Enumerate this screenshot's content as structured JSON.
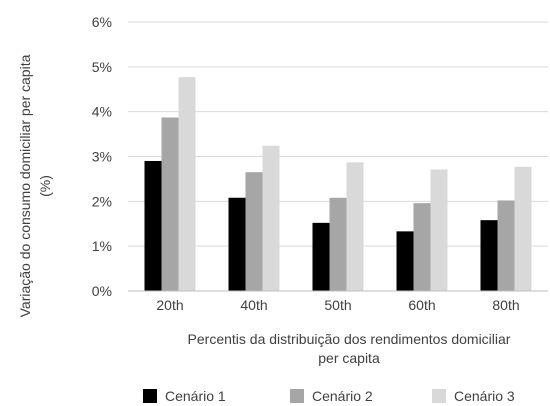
{
  "chart_data": {
    "type": "bar",
    "categories": [
      "20th",
      "40th",
      "50th",
      "60th",
      "80th"
    ],
    "series": [
      {
        "name": "Cenário 1",
        "color": "#000000",
        "values": [
          2.9,
          2.08,
          1.52,
          1.33,
          1.58
        ]
      },
      {
        "name": "Cenário 2",
        "color": "#a6a6a6",
        "values": [
          3.87,
          2.65,
          2.08,
          1.96,
          2.02
        ]
      },
      {
        "name": "Cenário 3",
        "color": "#d9d9d9",
        "values": [
          4.77,
          3.24,
          2.87,
          2.71,
          2.77
        ]
      }
    ],
    "ylim": [
      0,
      6
    ],
    "y_ticks": [
      "0%",
      "1%",
      "2%",
      "3%",
      "4%",
      "5%",
      "6%"
    ],
    "ylabel": [
      "Variação do consumo domiciliar per capita",
      "(%)"
    ],
    "xlabel": [
      "Percentis da distribuição dos rendimentos domiciliar",
      "per capita"
    ],
    "grid": true,
    "legend_position": "bottom"
  }
}
